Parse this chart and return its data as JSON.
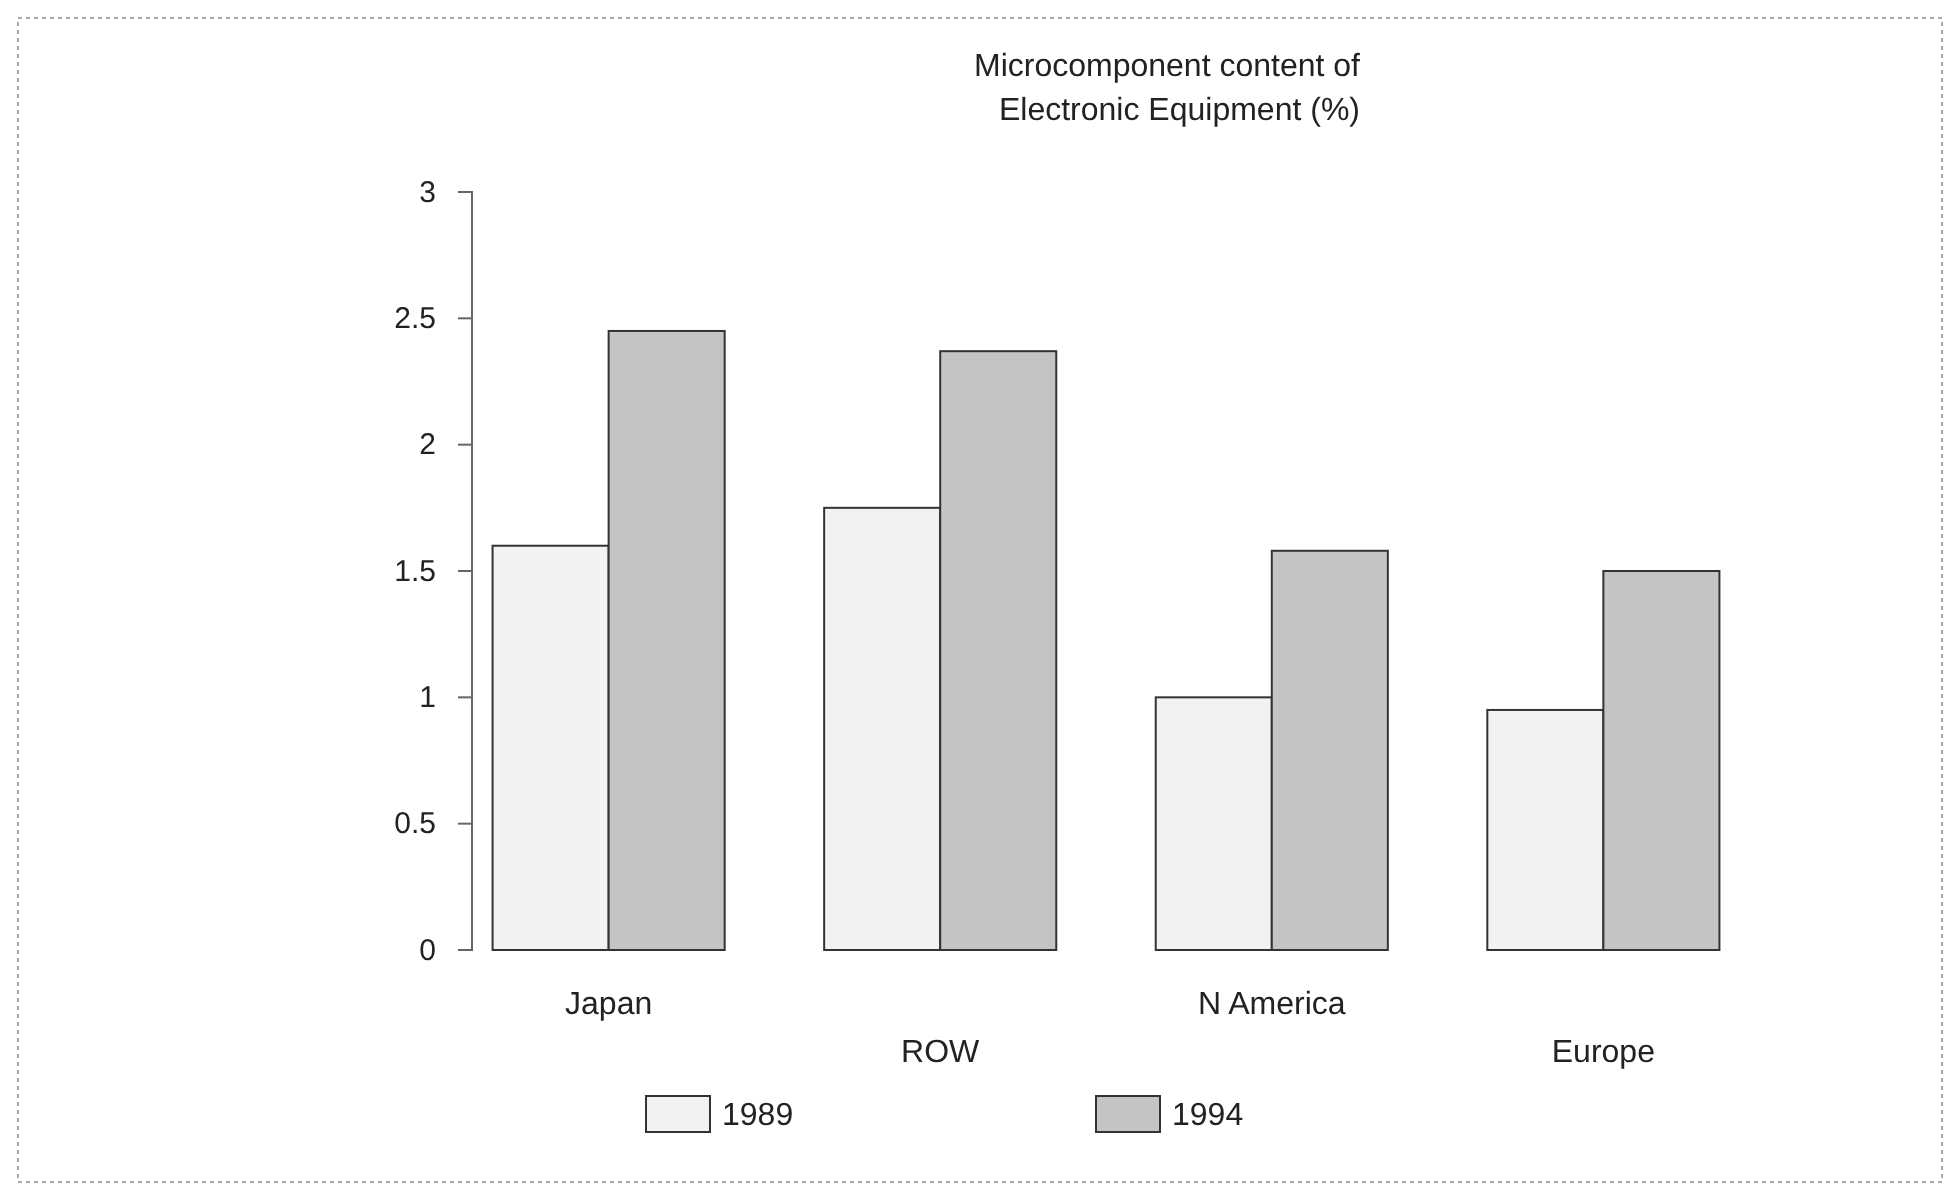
{
  "chart_data": {
    "type": "bar",
    "title": "Microcomponent content of\nElectronic Equipment (%)",
    "categories": [
      "Japan",
      "ROW",
      "N America",
      "Europe"
    ],
    "series": [
      {
        "name": "1989",
        "color": "#f2f2f2",
        "values": [
          1.6,
          1.75,
          1.0,
          0.95
        ]
      },
      {
        "name": "1994",
        "color": "#c4c4c4",
        "values": [
          2.45,
          2.37,
          1.58,
          1.5
        ]
      }
    ],
    "ylim": [
      0,
      3
    ],
    "yticks": [
      0,
      0.5,
      1,
      1.5,
      2,
      2.5,
      3
    ],
    "grid": false,
    "legend": "bottom"
  }
}
